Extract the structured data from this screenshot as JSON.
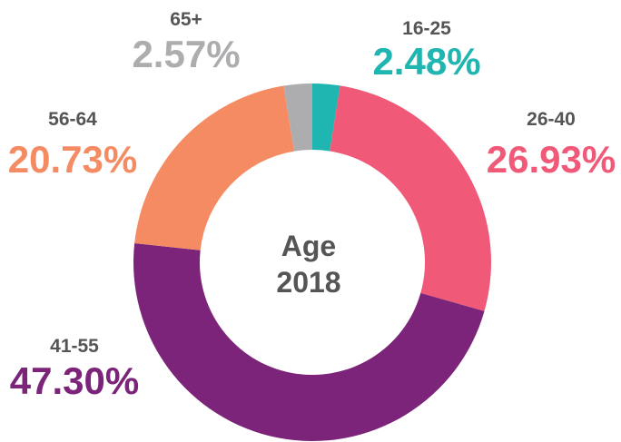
{
  "chart_data": {
    "type": "donut",
    "title": "Age",
    "subtitle": "2018",
    "categories": [
      "16-25",
      "26-40",
      "41-55",
      "56-64",
      "65+"
    ],
    "values": [
      2.48,
      26.93,
      47.3,
      20.73,
      2.57
    ],
    "value_labels": [
      "2.48%",
      "26.93%",
      "47.30%",
      "20.73%",
      "2.57%"
    ],
    "colors": [
      "#1fb5b0",
      "#f05a78",
      "#7b2479",
      "#f58b62",
      "#adadb0"
    ]
  }
}
